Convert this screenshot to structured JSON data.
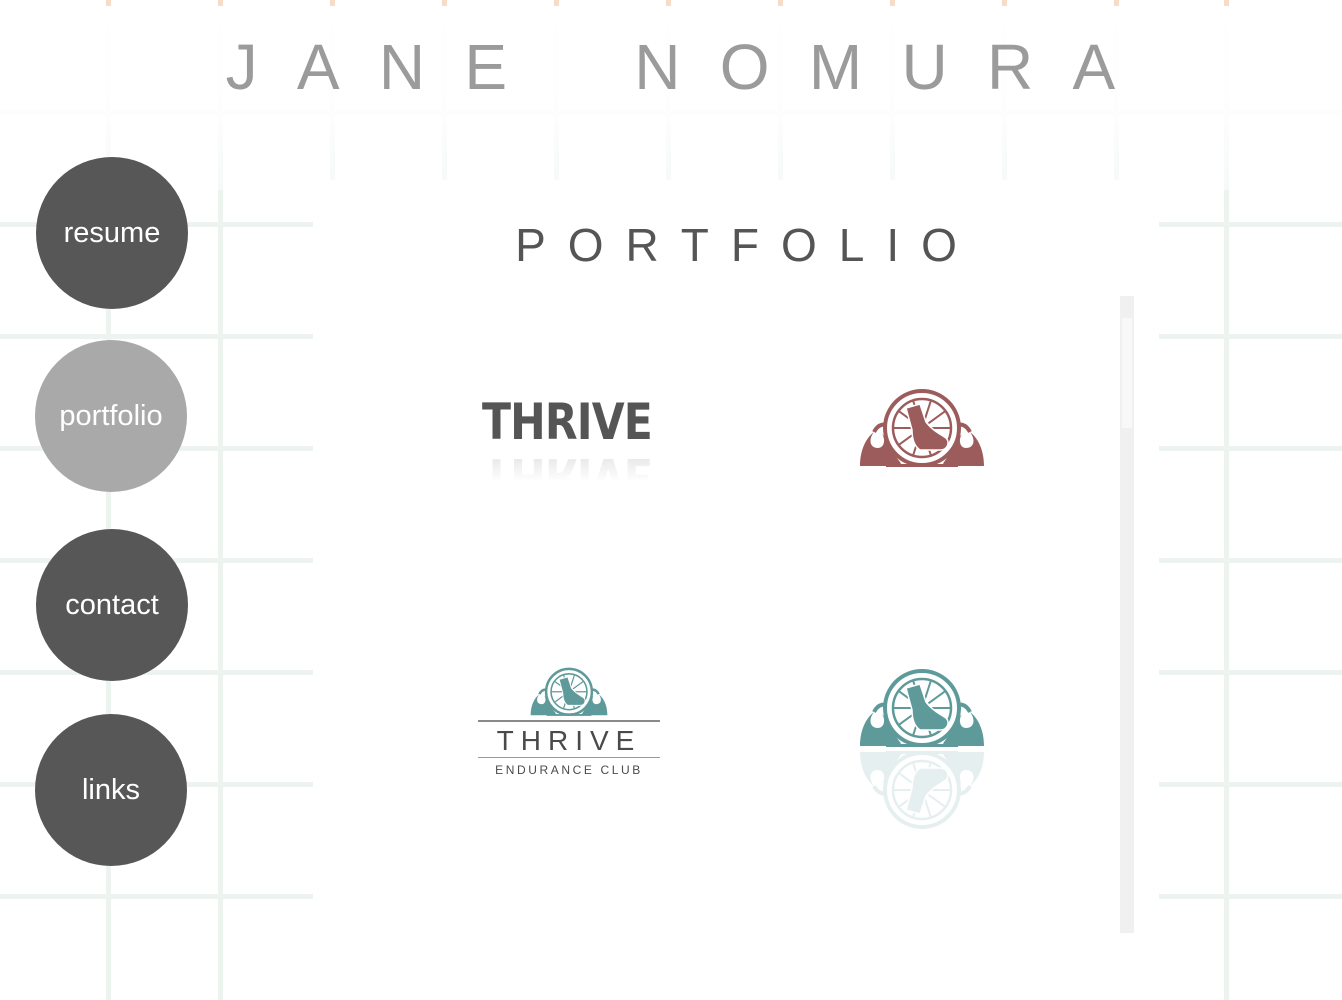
{
  "site": {
    "title_words": [
      "JANE",
      "NOMURA"
    ]
  },
  "nav": {
    "items": [
      {
        "label": "resume",
        "active": false
      },
      {
        "label": "portfolio",
        "active": true
      },
      {
        "label": "contact",
        "active": false
      },
      {
        "label": "links",
        "active": false
      }
    ]
  },
  "portfolio": {
    "title": "PORTFOLIO",
    "items": [
      {
        "wordmark": "THRIVE"
      },
      {
        "icon": "shoe-wheel-wave-logo-icon",
        "color": "#9c5c5c"
      },
      {
        "name": "THRIVE",
        "subtitle": "ENDURANCE CLUB",
        "icon": "shoe-wheel-wave-logo-icon",
        "color": "#5f9a9a"
      },
      {
        "icon": "shoe-wheel-wave-logo-icon",
        "color": "#5f9a9a"
      }
    ]
  },
  "colors": {
    "nav_button": "#575757",
    "nav_button_active": "#a9a9a9",
    "grid": "#edf4ef",
    "title": "#9b9b9b"
  }
}
